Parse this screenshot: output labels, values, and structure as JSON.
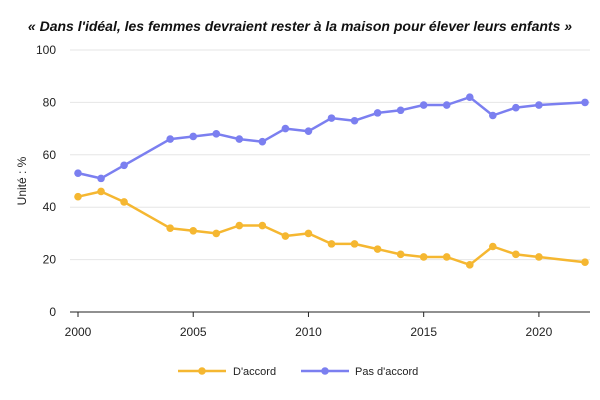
{
  "chart_data": {
    "type": "line",
    "title": "« Dans l'idéal, les femmes devraient rester à la maison pour élever leurs enfants »",
    "ylabel": "Unité : %",
    "xlabel": "",
    "xlim": [
      2000,
      2022
    ],
    "ylim": [
      0,
      100
    ],
    "x_ticks": [
      2000,
      2005,
      2010,
      2015,
      2020
    ],
    "y_ticks": [
      0,
      20,
      40,
      60,
      80,
      100
    ],
    "grid": "horizontal",
    "legend_position": "bottom",
    "series": [
      {
        "name": "D'accord",
        "color": "#f5b731",
        "points": [
          [
            2000,
            44
          ],
          [
            2001,
            46
          ],
          [
            2002,
            42
          ],
          [
            2004,
            32
          ],
          [
            2005,
            31
          ],
          [
            2006,
            30
          ],
          [
            2007,
            33
          ],
          [
            2008,
            33
          ],
          [
            2009,
            29
          ],
          [
            2010,
            30
          ],
          [
            2011,
            26
          ],
          [
            2012,
            26
          ],
          [
            2013,
            24
          ],
          [
            2014,
            22
          ],
          [
            2015,
            21
          ],
          [
            2016,
            21
          ],
          [
            2017,
            18
          ],
          [
            2018,
            25
          ],
          [
            2019,
            22
          ],
          [
            2020,
            21
          ],
          [
            2022,
            19
          ]
        ]
      },
      {
        "name": "Pas d'accord",
        "color": "#7b7ff0",
        "points": [
          [
            2000,
            53
          ],
          [
            2001,
            51
          ],
          [
            2002,
            56
          ],
          [
            2004,
            66
          ],
          [
            2005,
            67
          ],
          [
            2006,
            68
          ],
          [
            2007,
            66
          ],
          [
            2008,
            65
          ],
          [
            2009,
            70
          ],
          [
            2010,
            69
          ],
          [
            2011,
            74
          ],
          [
            2012,
            73
          ],
          [
            2013,
            76
          ],
          [
            2014,
            77
          ],
          [
            2015,
            79
          ],
          [
            2016,
            79
          ],
          [
            2017,
            82
          ],
          [
            2018,
            75
          ],
          [
            2019,
            78
          ],
          [
            2020,
            79
          ],
          [
            2022,
            80
          ]
        ]
      }
    ]
  }
}
